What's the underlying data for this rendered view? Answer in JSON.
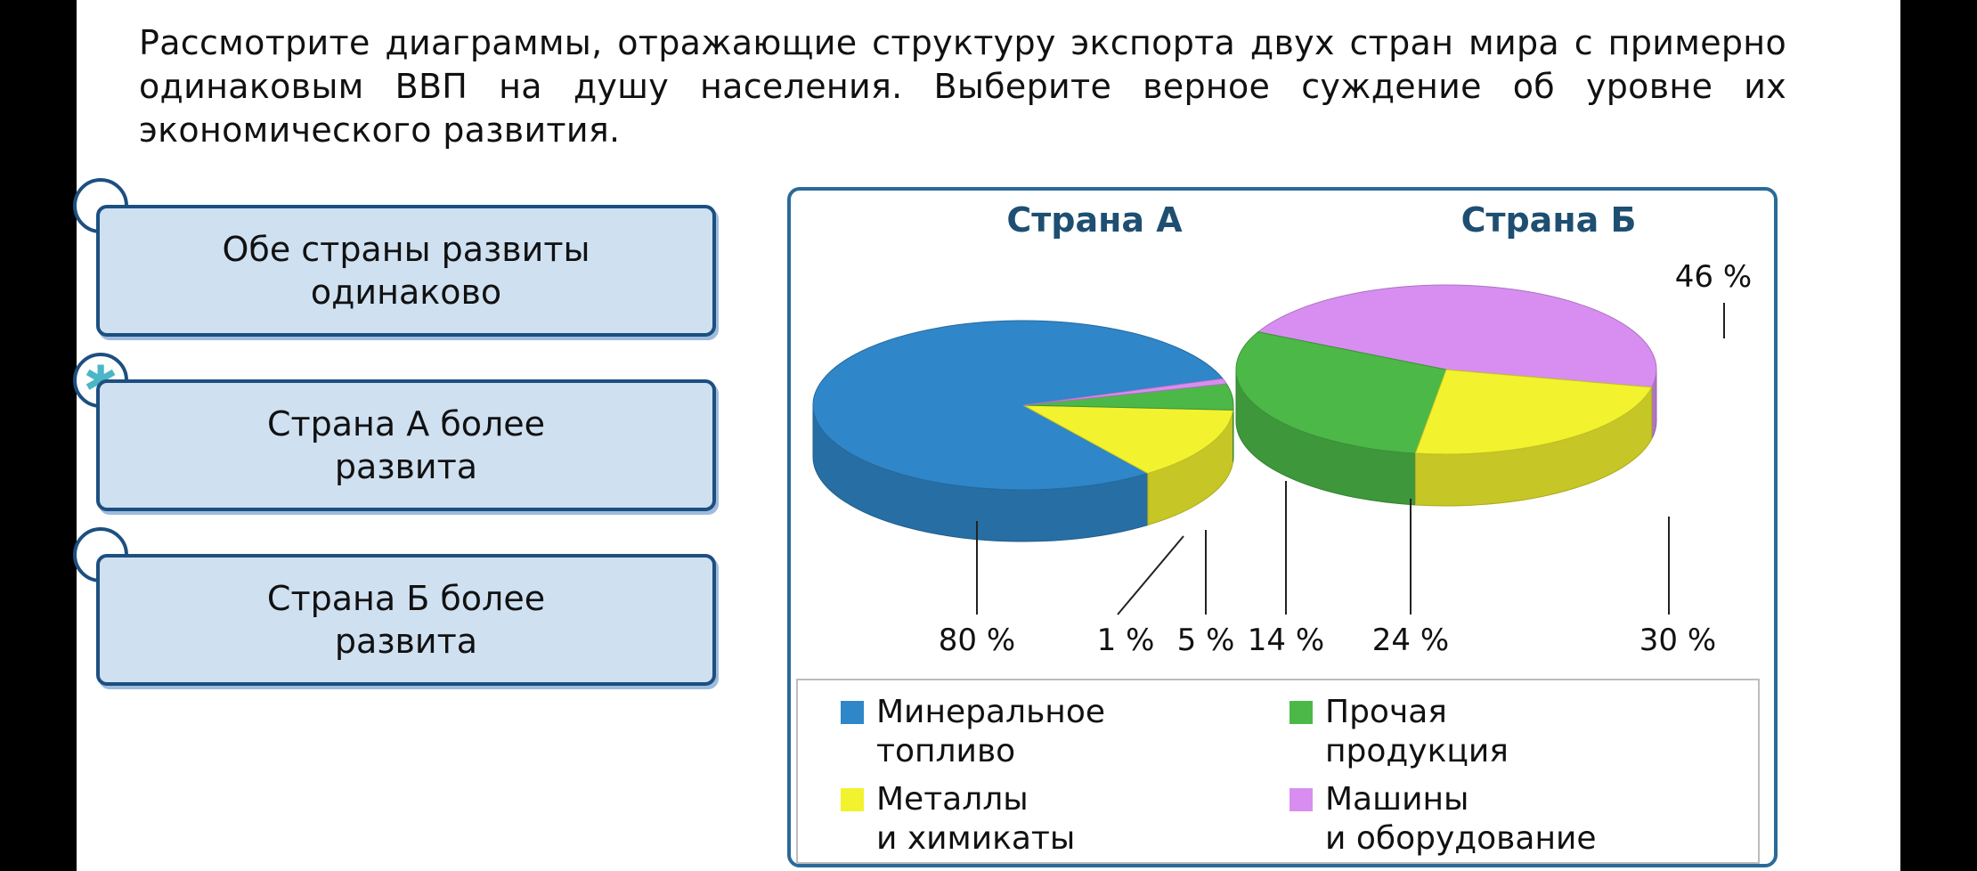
{
  "question": "Рассмотрите диаграммы, отражающие структуру экспорта двух стран мира с примерно одинаковым ВВП на душу населения. Выберите верное суждение об уровне их экономического развития.",
  "options": [
    {
      "label": "Обе страны развиты одинаково",
      "selected": false
    },
    {
      "label": "Страна А более развита",
      "selected": true
    },
    {
      "label": "Страна Б более развита",
      "selected": false
    }
  ],
  "selected_mark_icon": "asterisk-icon",
  "chart_data": [
    {
      "type": "pie",
      "title": "Страна А",
      "categories": [
        "Минеральное топливо",
        "Металлы и химикаты",
        "Прочая продукция",
        "Машины и оборудование"
      ],
      "values": [
        80,
        14,
        5,
        1
      ],
      "value_labels": [
        "80 %",
        "14 %",
        "5 %",
        "1 %"
      ],
      "colors": [
        "#2f86c8",
        "#f2f22e",
        "#4cb848",
        "#d88ef0"
      ]
    },
    {
      "type": "pie",
      "title": "Страна Б",
      "categories": [
        "Машины и оборудование",
        "Прочая продукция",
        "Металлы и химикаты"
      ],
      "values": [
        46,
        30,
        24
      ],
      "value_labels": [
        "46 %",
        "30 %",
        "24 %"
      ],
      "colors": [
        "#d88ef0",
        "#4cb848",
        "#f2f22e"
      ]
    }
  ],
  "legend": [
    {
      "name": "Минеральное топливо",
      "line1": "Минеральное",
      "line2": "топливо",
      "color": "#2f86c8"
    },
    {
      "name": "Прочая продукция",
      "line1": "Прочая",
      "line2": "продукция",
      "color": "#4cb848"
    },
    {
      "name": "Металлы и химикаты",
      "line1": "Металлы",
      "line2": "и химикаты",
      "color": "#f2f22e"
    },
    {
      "name": "Машины и оборудование",
      "line1": "Машины",
      "line2": "и оборудование",
      "color": "#d88ef0"
    }
  ]
}
